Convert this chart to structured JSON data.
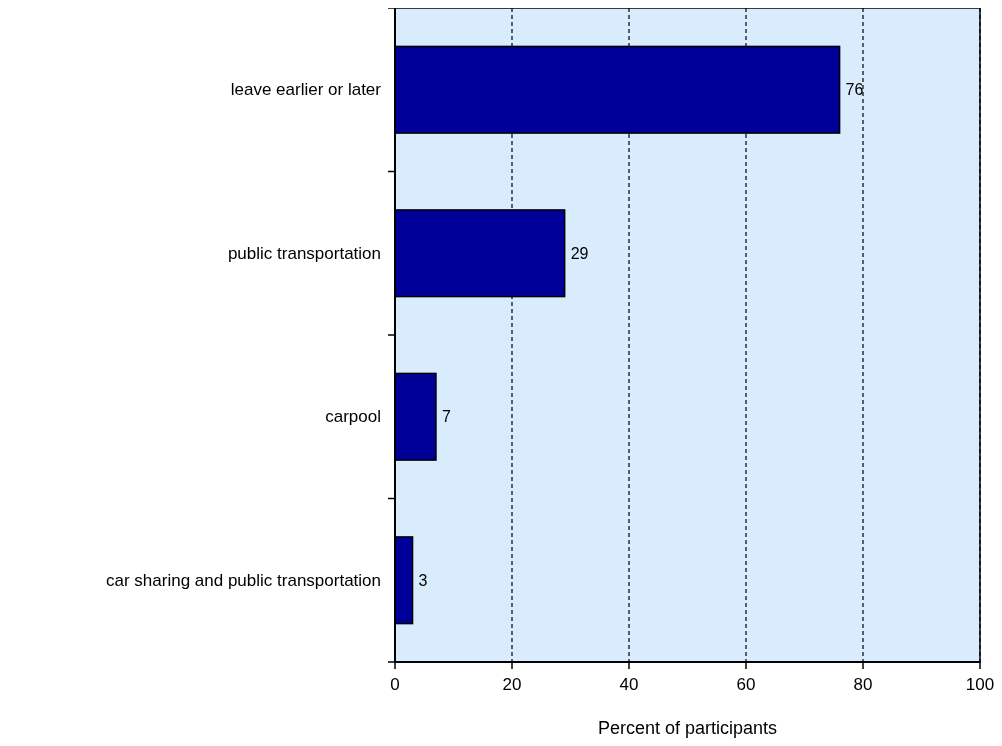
{
  "chart_data": {
    "type": "bar",
    "orientation": "horizontal",
    "xlabel": "Percent of participants",
    "categories": [
      "leave earlier or later",
      "public transportation",
      "carpool",
      "car sharing and public transportation"
    ],
    "values": [
      76,
      29,
      7,
      3
    ],
    "color": "#000099",
    "xlim": [
      0,
      100
    ],
    "xticks": [
      0,
      20,
      40,
      60,
      80,
      100
    ],
    "grid": "x",
    "data_labels": true
  }
}
